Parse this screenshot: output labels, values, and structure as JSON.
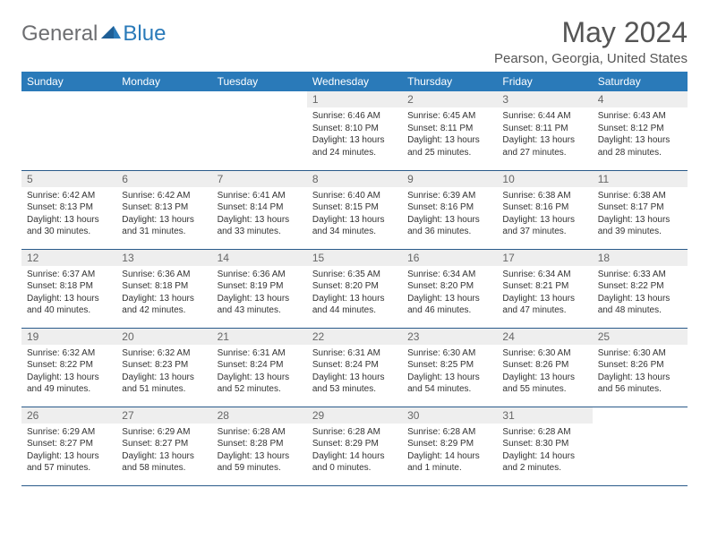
{
  "logo": {
    "text_general": "General",
    "text_blue": "Blue"
  },
  "title": "May 2024",
  "location": "Pearson, Georgia, United States",
  "colors": {
    "header_bg": "#2a7ab9",
    "header_text": "#ffffff",
    "daynum_bg": "#eeeeee",
    "border": "#2a5a8a",
    "body_text": "#333333",
    "logo_gray": "#6d6e71",
    "logo_blue": "#2a7ab9"
  },
  "day_headers": [
    "Sunday",
    "Monday",
    "Tuesday",
    "Wednesday",
    "Thursday",
    "Friday",
    "Saturday"
  ],
  "weeks": [
    [
      null,
      null,
      null,
      {
        "n": "1",
        "sunrise": "6:46 AM",
        "sunset": "8:10 PM",
        "daylight": "13 hours and 24 minutes."
      },
      {
        "n": "2",
        "sunrise": "6:45 AM",
        "sunset": "8:11 PM",
        "daylight": "13 hours and 25 minutes."
      },
      {
        "n": "3",
        "sunrise": "6:44 AM",
        "sunset": "8:11 PM",
        "daylight": "13 hours and 27 minutes."
      },
      {
        "n": "4",
        "sunrise": "6:43 AM",
        "sunset": "8:12 PM",
        "daylight": "13 hours and 28 minutes."
      }
    ],
    [
      {
        "n": "5",
        "sunrise": "6:42 AM",
        "sunset": "8:13 PM",
        "daylight": "13 hours and 30 minutes."
      },
      {
        "n": "6",
        "sunrise": "6:42 AM",
        "sunset": "8:13 PM",
        "daylight": "13 hours and 31 minutes."
      },
      {
        "n": "7",
        "sunrise": "6:41 AM",
        "sunset": "8:14 PM",
        "daylight": "13 hours and 33 minutes."
      },
      {
        "n": "8",
        "sunrise": "6:40 AM",
        "sunset": "8:15 PM",
        "daylight": "13 hours and 34 minutes."
      },
      {
        "n": "9",
        "sunrise": "6:39 AM",
        "sunset": "8:16 PM",
        "daylight": "13 hours and 36 minutes."
      },
      {
        "n": "10",
        "sunrise": "6:38 AM",
        "sunset": "8:16 PM",
        "daylight": "13 hours and 37 minutes."
      },
      {
        "n": "11",
        "sunrise": "6:38 AM",
        "sunset": "8:17 PM",
        "daylight": "13 hours and 39 minutes."
      }
    ],
    [
      {
        "n": "12",
        "sunrise": "6:37 AM",
        "sunset": "8:18 PM",
        "daylight": "13 hours and 40 minutes."
      },
      {
        "n": "13",
        "sunrise": "6:36 AM",
        "sunset": "8:18 PM",
        "daylight": "13 hours and 42 minutes."
      },
      {
        "n": "14",
        "sunrise": "6:36 AM",
        "sunset": "8:19 PM",
        "daylight": "13 hours and 43 minutes."
      },
      {
        "n": "15",
        "sunrise": "6:35 AM",
        "sunset": "8:20 PM",
        "daylight": "13 hours and 44 minutes."
      },
      {
        "n": "16",
        "sunrise": "6:34 AM",
        "sunset": "8:20 PM",
        "daylight": "13 hours and 46 minutes."
      },
      {
        "n": "17",
        "sunrise": "6:34 AM",
        "sunset": "8:21 PM",
        "daylight": "13 hours and 47 minutes."
      },
      {
        "n": "18",
        "sunrise": "6:33 AM",
        "sunset": "8:22 PM",
        "daylight": "13 hours and 48 minutes."
      }
    ],
    [
      {
        "n": "19",
        "sunrise": "6:32 AM",
        "sunset": "8:22 PM",
        "daylight": "13 hours and 49 minutes."
      },
      {
        "n": "20",
        "sunrise": "6:32 AM",
        "sunset": "8:23 PM",
        "daylight": "13 hours and 51 minutes."
      },
      {
        "n": "21",
        "sunrise": "6:31 AM",
        "sunset": "8:24 PM",
        "daylight": "13 hours and 52 minutes."
      },
      {
        "n": "22",
        "sunrise": "6:31 AM",
        "sunset": "8:24 PM",
        "daylight": "13 hours and 53 minutes."
      },
      {
        "n": "23",
        "sunrise": "6:30 AM",
        "sunset": "8:25 PM",
        "daylight": "13 hours and 54 minutes."
      },
      {
        "n": "24",
        "sunrise": "6:30 AM",
        "sunset": "8:26 PM",
        "daylight": "13 hours and 55 minutes."
      },
      {
        "n": "25",
        "sunrise": "6:30 AM",
        "sunset": "8:26 PM",
        "daylight": "13 hours and 56 minutes."
      }
    ],
    [
      {
        "n": "26",
        "sunrise": "6:29 AM",
        "sunset": "8:27 PM",
        "daylight": "13 hours and 57 minutes."
      },
      {
        "n": "27",
        "sunrise": "6:29 AM",
        "sunset": "8:27 PM",
        "daylight": "13 hours and 58 minutes."
      },
      {
        "n": "28",
        "sunrise": "6:28 AM",
        "sunset": "8:28 PM",
        "daylight": "13 hours and 59 minutes."
      },
      {
        "n": "29",
        "sunrise": "6:28 AM",
        "sunset": "8:29 PM",
        "daylight": "14 hours and 0 minutes."
      },
      {
        "n": "30",
        "sunrise": "6:28 AM",
        "sunset": "8:29 PM",
        "daylight": "14 hours and 1 minute."
      },
      {
        "n": "31",
        "sunrise": "6:28 AM",
        "sunset": "8:30 PM",
        "daylight": "14 hours and 2 minutes."
      },
      null
    ]
  ],
  "labels": {
    "sunrise": "Sunrise:",
    "sunset": "Sunset:",
    "daylight": "Daylight:"
  }
}
